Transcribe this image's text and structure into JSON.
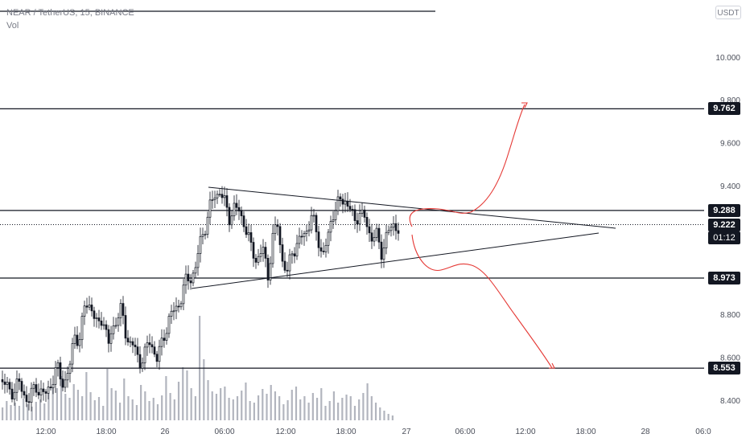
{
  "header": {
    "symbol": "NEAR / TetherUS, 15, BINANCE",
    "volume_label": "Vol"
  },
  "currency": "USDT",
  "colors": {
    "candle": "#131722",
    "volume": "#b2b5be",
    "level_line": "#131722",
    "annotation": "#e53935",
    "badge_bg": "#131722"
  },
  "chart_data": {
    "type": "candlestick",
    "x_ticks": [
      "12:00",
      "18:00",
      "26",
      "06:00",
      "12:00",
      "18:00",
      "27",
      "06:00",
      "12:00",
      "18:00",
      "28",
      "06:0"
    ],
    "y_ticks": [
      "10.000",
      "9.800",
      "9.600",
      "9.400",
      "8.800",
      "8.600",
      "8.400"
    ],
    "ylim": [
      8.33,
      10.25
    ],
    "levels": [
      {
        "label": "9.762",
        "value": 9.762
      },
      {
        "label": "9.288",
        "value": 9.288
      },
      {
        "label": "8.973",
        "value": 8.973
      },
      {
        "label": "8.553",
        "value": 8.553
      }
    ],
    "last_price": {
      "label": "9.222",
      "value": 9.222,
      "countdown": "01:12"
    },
    "price_path": [
      [
        0,
        8.5
      ],
      [
        12,
        8.44
      ],
      [
        22,
        8.48
      ],
      [
        34,
        8.4
      ],
      [
        44,
        8.47
      ],
      [
        55,
        8.42
      ],
      [
        64,
        8.5
      ],
      [
        70,
        8.55
      ],
      [
        78,
        8.48
      ],
      [
        86,
        8.56
      ],
      [
        92,
        8.72
      ],
      [
        98,
        8.68
      ],
      [
        104,
        8.84
      ],
      [
        112,
        8.86
      ],
      [
        118,
        8.74
      ],
      [
        126,
        8.8
      ],
      [
        134,
        8.66
      ],
      [
        142,
        8.78
      ],
      [
        150,
        8.82
      ],
      [
        156,
        8.7
      ],
      [
        164,
        8.66
      ],
      [
        172,
        8.58
      ],
      [
        180,
        8.63
      ],
      [
        186,
        8.68
      ],
      [
        194,
        8.6
      ],
      [
        200,
        8.66
      ],
      [
        208,
        8.78
      ],
      [
        216,
        8.82
      ],
      [
        222,
        8.86
      ],
      [
        228,
        8.94
      ],
      [
        236,
        8.98
      ],
      [
        242,
        9.02
      ],
      [
        248,
        9.14
      ],
      [
        254,
        9.22
      ],
      [
        260,
        9.3
      ],
      [
        266,
        9.36
      ],
      [
        272,
        9.38
      ],
      [
        278,
        9.32
      ],
      [
        284,
        9.26
      ],
      [
        290,
        9.3
      ],
      [
        296,
        9.28
      ],
      [
        302,
        9.24
      ],
      [
        310,
        9.12
      ],
      [
        318,
        9.06
      ],
      [
        326,
        9.1
      ],
      [
        332,
        8.99
      ],
      [
        338,
        9.16
      ],
      [
        344,
        9.22
      ],
      [
        350,
        9.06
      ],
      [
        356,
        8.99
      ],
      [
        362,
        9.1
      ],
      [
        370,
        9.14
      ],
      [
        378,
        9.18
      ],
      [
        386,
        9.26
      ],
      [
        394,
        9.16
      ],
      [
        400,
        9.08
      ],
      [
        406,
        9.14
      ],
      [
        412,
        9.28
      ],
      [
        420,
        9.32
      ],
      [
        428,
        9.34
      ],
      [
        434,
        9.3
      ],
      [
        440,
        9.22
      ],
      [
        446,
        9.3
      ],
      [
        452,
        9.24
      ],
      [
        460,
        9.16
      ],
      [
        466,
        9.2
      ],
      [
        472,
        9.06
      ],
      [
        478,
        9.18
      ],
      [
        486,
        9.2
      ],
      [
        494,
        9.22
      ]
    ],
    "volume": [
      16,
      24,
      19,
      22,
      18,
      27,
      20,
      17,
      23,
      26,
      21,
      34,
      42,
      40,
      55,
      33,
      28,
      45,
      38,
      30,
      60,
      35,
      25,
      29,
      18,
      64,
      40,
      37,
      22,
      52,
      30,
      26,
      19,
      44,
      36,
      24,
      28,
      20,
      31,
      55,
      34,
      26,
      48,
      66,
      62,
      40,
      30,
      130,
      76,
      50,
      36,
      33,
      40,
      42,
      28,
      26,
      30,
      37,
      47,
      24,
      22,
      31,
      39,
      33,
      44,
      36,
      30,
      20,
      25,
      38,
      42,
      26,
      30,
      22,
      34,
      28,
      40,
      18,
      24,
      36,
      22,
      28,
      32,
      30,
      18,
      26,
      34,
      46,
      30,
      22,
      16,
      12,
      8,
      6
    ]
  }
}
